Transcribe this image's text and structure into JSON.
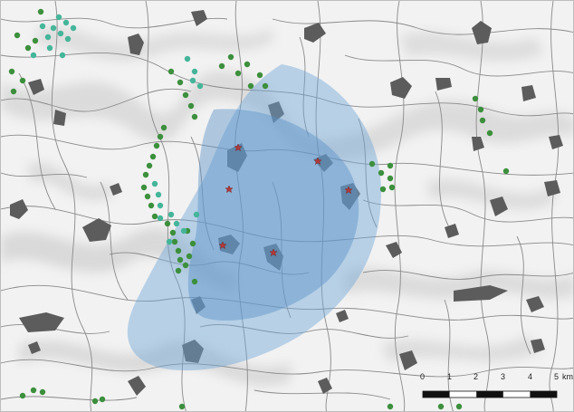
{
  "map": {
    "colors": {
      "background": "#f2f2f2",
      "hillshade": "#d0d0d0",
      "roads": "#8a8a8a",
      "settlements": "#5a5a5a",
      "zone_fill": "#6fa6d6",
      "star_marker": "#b23a3a",
      "green_points": "#3c8f3c",
      "teal_points": "#45b59a"
    },
    "layers": [
      "hillshade",
      "road-network",
      "settlements",
      "influence-zone-outer",
      "influence-zone-inner",
      "star-sites",
      "green-points",
      "teal-points",
      "scale-bar"
    ]
  },
  "scale_bar": {
    "labels": [
      "0",
      "1",
      "2",
      "3",
      "4",
      "5"
    ],
    "unit": "km"
  }
}
